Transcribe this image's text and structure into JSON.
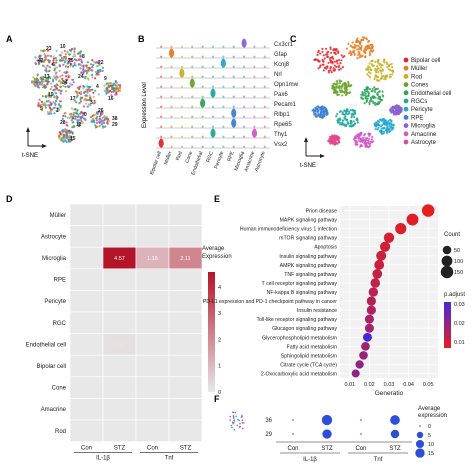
{
  "panels": {
    "A": {
      "letter": "A",
      "axis_label": "t-SNE",
      "cluster_ids": [
        "23",
        "10",
        "42",
        "6",
        "25",
        "8",
        "22",
        "13",
        "34",
        "24",
        "4",
        "19",
        "17",
        "3",
        "38",
        "1",
        "29",
        "12",
        "16",
        "5",
        "28",
        "0",
        "26",
        "15",
        "9"
      ]
    },
    "B": {
      "letter": "B",
      "ylabel": "Expression Level",
      "genes": [
        "Cx3cr1",
        "Gfap",
        "Kcnj8",
        "Nrl",
        "Opn1mw",
        "Pax6",
        "Pecam1",
        "Rlbp1",
        "Rpe65",
        "Thy1",
        "Vsx2"
      ],
      "cell_types": [
        "Bipolar cell",
        "Müller",
        "Rod",
        "Cone",
        "Endothelial",
        "RGC",
        "Pericyte",
        "RPE",
        "Microglia",
        "Amacrine",
        "Astrocyte"
      ]
    },
    "C": {
      "letter": "C",
      "axis_label": "t-SNE",
      "legend": [
        {
          "name": "Bipolar cell",
          "color": "#e6262b"
        },
        {
          "name": "Müller",
          "color": "#e67a1e"
        },
        {
          "name": "Rod",
          "color": "#c4b01d"
        },
        {
          "name": "Cones",
          "color": "#6aa22d"
        },
        {
          "name": "Endothelial cell",
          "color": "#2ea35a"
        },
        {
          "name": "RGCs",
          "color": "#21a79c"
        },
        {
          "name": "Pericyte",
          "color": "#20a6cf"
        },
        {
          "name": "RPE",
          "color": "#3a7fd6"
        },
        {
          "name": "Microglia",
          "color": "#8a5fd3"
        },
        {
          "name": "Amacrine",
          "color": "#d455c8"
        },
        {
          "name": "Astrocyte",
          "color": "#e04a8e"
        }
      ]
    },
    "D": {
      "letter": "D",
      "colorbar_title": "Average\nExpression",
      "colorbar_ticks": [
        "4",
        "3",
        "2",
        "1",
        "0"
      ],
      "groups": [
        "IL-1β",
        "Tnf"
      ],
      "conditions": [
        "Con",
        "STZ",
        "Con",
        "STZ"
      ]
    },
    "E": {
      "letter": "E",
      "xlabel": "Generatio",
      "x_ticks": [
        "0.01",
        "0.02",
        "0.03",
        "0.04",
        "0.05"
      ],
      "size_title": "Count",
      "size_legend": [
        "50",
        "100",
        "150"
      ],
      "color_title": "p.adjust",
      "color_ticks": [
        "0.03",
        "0.02",
        "0.01"
      ]
    },
    "F": {
      "letter": "F",
      "rows": [
        "36",
        "29"
      ],
      "groups": [
        "IL-1β",
        "Tnf"
      ],
      "conditions": [
        "Con",
        "STZ",
        "Con",
        "STZ"
      ],
      "size_title": "Average\nexpression",
      "size_legend": [
        "0",
        "5",
        "10",
        "15"
      ]
    }
  },
  "chart_data": [
    {
      "type": "heatmap",
      "panel": "D",
      "rows": [
        "Müller",
        "Astrocyte",
        "Microglia",
        "RPE",
        "Pericyte",
        "RGC",
        "Endothelial cell",
        "Bipolar cell",
        "Cone",
        "Amacrine",
        "Rod"
      ],
      "columns": [
        "Con IL-1β",
        "STZ IL-1β",
        "Con Tnf",
        "STZ Tnf"
      ],
      "values": [
        [
          0.0,
          0.0,
          0.0,
          0.0
        ],
        [
          0.0,
          0.0,
          0.0,
          0.0
        ],
        [
          0.0,
          4.57,
          1.15,
          2.11
        ],
        [
          0.0,
          0.0,
          0.0,
          0.0
        ],
        [
          0.0,
          0.0,
          0.0,
          0.0
        ],
        [
          0.0,
          0.0,
          0.0,
          0.0
        ],
        [
          0.0,
          0.19,
          0.0,
          0.0
        ],
        [
          0.0,
          0.0,
          0.0,
          0.0
        ],
        [
          0.0,
          0.0,
          0.0,
          0.0
        ],
        [
          0.0,
          0.0,
          0.0,
          0.0
        ],
        [
          0.0,
          0.0,
          0.0,
          0.0
        ]
      ],
      "value_labels": [
        [
          "0.00",
          "0.00",
          "0.00",
          "0.00"
        ],
        [
          "0.00",
          "0.00",
          "0.00",
          "0.00"
        ],
        [
          "0.00",
          "4.57",
          "1.15",
          "2.11"
        ],
        [
          "0.00",
          "0.00",
          "0.00",
          "0.00"
        ],
        [
          "0.00",
          "0.00",
          "0.00",
          "0.00"
        ],
        [
          "0.00",
          "0.00",
          "0.00",
          "0.00"
        ],
        [
          "0.00",
          "0.19",
          "0.00",
          "0.00"
        ],
        [
          "0.00",
          "0.00",
          "0.00",
          "0.00"
        ],
        [
          "0.00",
          "0.00",
          "0.00",
          "0.00"
        ],
        [
          "0.00",
          "0.00",
          "0.00",
          "0.00"
        ],
        [
          "0.00",
          "0.00",
          "0.00",
          "0.00"
        ]
      ],
      "colorbar_range": [
        0,
        4.57
      ]
    },
    {
      "type": "scatter",
      "panel": "E",
      "xlabel": "Generatio",
      "xlim": [
        0.005,
        0.055
      ],
      "terms": [
        {
          "name": "Prion disease",
          "x": 0.05,
          "count": 150,
          "padj": 0.001
        },
        {
          "name": "MAPK signaling pathway",
          "x": 0.042,
          "count": 130,
          "padj": 0.002
        },
        {
          "name": "Human immunodeficiency virus 1 infection",
          "x": 0.036,
          "count": 110,
          "padj": 0.003
        },
        {
          "name": "mTOR signaling pathway",
          "x": 0.03,
          "count": 90,
          "padj": 0.004
        },
        {
          "name": "Apoptosis",
          "x": 0.028,
          "count": 85,
          "padj": 0.005
        },
        {
          "name": "Insulin signaling pathway",
          "x": 0.026,
          "count": 80,
          "padj": 0.006
        },
        {
          "name": "AMPK signaling pathway",
          "x": 0.025,
          "count": 76,
          "padj": 0.006
        },
        {
          "name": "TNF signaling pathway",
          "x": 0.024,
          "count": 73,
          "padj": 0.007
        },
        {
          "name": "T cell receptor signaling pathway",
          "x": 0.023,
          "count": 70,
          "padj": 0.008
        },
        {
          "name": "NF-kappa B signaling pathway",
          "x": 0.022,
          "count": 66,
          "padj": 0.009
        },
        {
          "name": "PD-L1 expression and PD-1 checkpoint pathway in cancer",
          "x": 0.021,
          "count": 63,
          "padj": 0.01
        },
        {
          "name": "Insulin resistance",
          "x": 0.021,
          "count": 62,
          "padj": 0.011
        },
        {
          "name": "Toll-like receptor signaling pathway",
          "x": 0.02,
          "count": 60,
          "padj": 0.012
        },
        {
          "name": "Glucagon signaling pathway",
          "x": 0.02,
          "count": 58,
          "padj": 0.013
        },
        {
          "name": "Glycerophospholipid metabolism",
          "x": 0.019,
          "count": 56,
          "padj": 0.03
        },
        {
          "name": "Fatty acid metabolism",
          "x": 0.018,
          "count": 52,
          "padj": 0.014
        },
        {
          "name": "Sphingolipid metabolism",
          "x": 0.017,
          "count": 50,
          "padj": 0.015
        },
        {
          "name": "Citrate cycle (TCA cycle)",
          "x": 0.015,
          "count": 45,
          "padj": 0.016
        },
        {
          "name": "2-Oxocarboxylic acid metabolism",
          "x": 0.013,
          "count": 40,
          "padj": 0.017
        }
      ],
      "size_legend": [
        50,
        100,
        150
      ],
      "color_legend": {
        "title": "p.adjust",
        "ticks": [
          0.03,
          0.02,
          0.01
        ]
      }
    },
    {
      "type": "scatter",
      "panel": "F",
      "rows": [
        "36",
        "29"
      ],
      "columns": [
        "Con IL-1β",
        "STZ IL-1β",
        "Con Tnf",
        "STZ Tnf"
      ],
      "avg_expression": [
        [
          0,
          12,
          0,
          10
        ],
        [
          0,
          9,
          0,
          7
        ]
      ],
      "size_legend": [
        0,
        5,
        10,
        15
      ]
    }
  ]
}
